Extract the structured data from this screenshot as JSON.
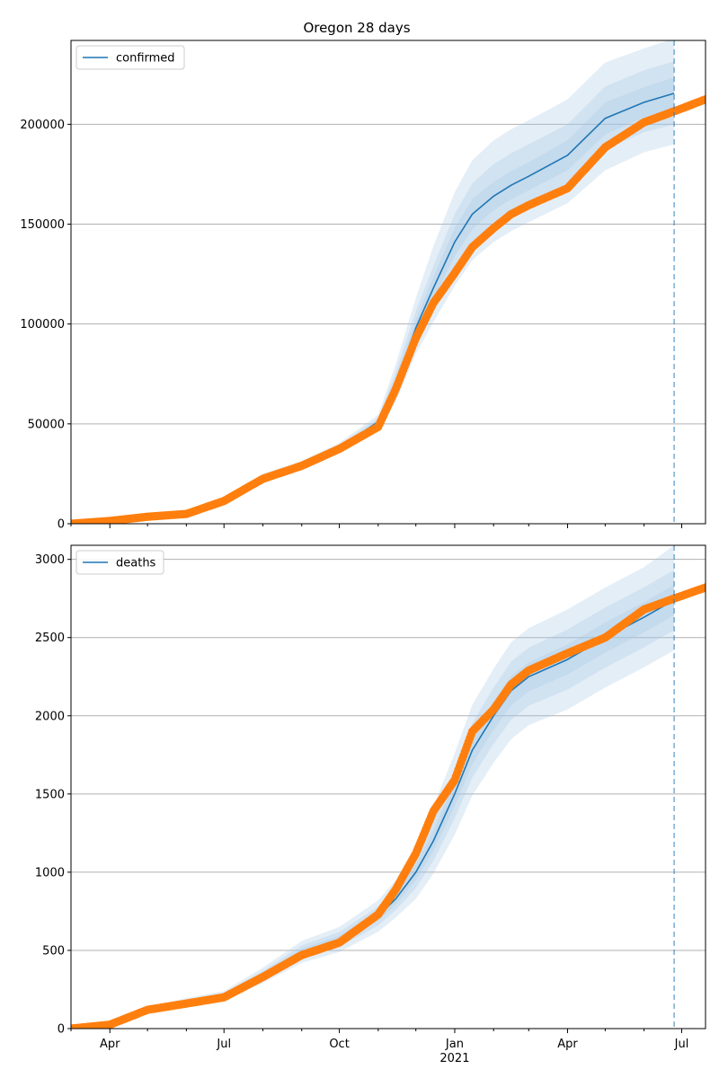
{
  "title": "Oregon 28 days",
  "colors": {
    "forecast": "#1f77b4",
    "observed": "#ff7f0e",
    "band": "#a6c8e6",
    "grid": "#b0b0b0"
  },
  "chart_data": [
    {
      "type": "line",
      "name": "confirmed-panel",
      "title": "Oregon 28 days",
      "xlabel": "",
      "ylabel": "",
      "xlim": [
        "2020-03-01",
        "2021-07-20"
      ],
      "ylim": [
        0,
        242000
      ],
      "grid": "horizontal",
      "legend_position": "top-left",
      "y_ticks": [
        0,
        50000,
        100000,
        150000,
        200000
      ],
      "forecast_cutoff": "2021-06-25",
      "series": [
        {
          "name": "confirmed",
          "role": "forecast-median",
          "x": [
            "2020-03-01",
            "2020-04-01",
            "2020-05-01",
            "2020-06-01",
            "2020-07-01",
            "2020-08-01",
            "2020-09-01",
            "2020-10-01",
            "2020-11-01",
            "2020-11-15",
            "2020-12-01",
            "2020-12-15",
            "2021-01-01",
            "2021-01-15",
            "2021-02-01",
            "2021-02-15",
            "2021-03-01",
            "2021-04-01",
            "2021-05-01",
            "2021-06-01",
            "2021-06-25"
          ],
          "y": [
            0,
            1500,
            3800,
            5500,
            12000,
            23000,
            29500,
            38000,
            51000,
            70000,
            98000,
            118000,
            141000,
            155000,
            164000,
            169500,
            174000,
            184500,
            203000,
            211000,
            215500
          ],
          "bands": [
            {
              "lower": [
                0,
                1300,
                3400,
                5000,
                11000,
                21000,
                27500,
                35500,
                47500,
                61000,
                85000,
                101000,
                119000,
                132000,
                141000,
                146500,
                151000,
                160500,
                177000,
                186000,
                190000
              ],
              "upper": [
                0,
                1700,
                4200,
                6000,
                13000,
                25000,
                31500,
                40500,
                54500,
                80000,
                113000,
                139000,
                166000,
                182000,
                192000,
                197500,
                202000,
                212500,
                231000,
                238000,
                243000
              ]
            },
            {
              "lower": [
                0,
                1400,
                3550,
                5200,
                11400,
                21800,
                28300,
                36500,
                49000,
                64500,
                90000,
                107500,
                127500,
                141000,
                150500,
                156000,
                160500,
                170500,
                187500,
                196000,
                200000
              ],
              "upper": [
                0,
                1600,
                4050,
                5800,
                12600,
                24200,
                30700,
                39500,
                53000,
                76000,
                106500,
                129000,
                155000,
                170500,
                180000,
                185500,
                190000,
                200000,
                219000,
                227000,
                231500
              ]
            },
            {
              "lower": [
                0,
                1450,
                3680,
                5350,
                11700,
                22400,
                28900,
                37200,
                50000,
                67000,
                94000,
                112500,
                134000,
                147500,
                157000,
                162500,
                167000,
                177000,
                195000,
                203500,
                207500
              ],
              "upper": [
                0,
                1550,
                3920,
                5650,
                12300,
                23600,
                30100,
                38800,
                52000,
                73000,
                102000,
                123500,
                148000,
                162500,
                171000,
                176500,
                181000,
                192000,
                211000,
                218500,
                223500
              ]
            }
          ]
        },
        {
          "name": "observed-confirmed",
          "role": "observed",
          "x": [
            "2020-03-01",
            "2020-04-01",
            "2020-05-01",
            "2020-06-01",
            "2020-07-01",
            "2020-08-01",
            "2020-09-01",
            "2020-10-01",
            "2020-11-01",
            "2020-11-15",
            "2020-12-01",
            "2020-12-15",
            "2021-01-01",
            "2021-01-15",
            "2021-02-01",
            "2021-02-15",
            "2021-03-01",
            "2021-04-01",
            "2021-05-01",
            "2021-06-01",
            "2021-06-25",
            "2021-07-20"
          ],
          "y": [
            0,
            1400,
            3500,
            4900,
            11400,
            22500,
            29000,
            37500,
            48500,
            67500,
            93000,
            110500,
            125500,
            138500,
            148000,
            155000,
            159500,
            168000,
            188500,
            201000,
            206500,
            212500
          ]
        }
      ]
    },
    {
      "type": "line",
      "name": "deaths-panel",
      "title": "",
      "xlabel": "",
      "ylabel": "",
      "xlim": [
        "2020-03-01",
        "2021-07-20"
      ],
      "ylim": [
        0,
        3090
      ],
      "grid": "horizontal",
      "legend_position": "top-left",
      "y_ticks": [
        0,
        500,
        1000,
        1500,
        2000,
        2500,
        3000
      ],
      "x_tick_labels": [
        "Apr",
        "Jul",
        "Oct",
        "Jan",
        "Apr",
        "Jul"
      ],
      "x_tick_dates": [
        "2020-04-01",
        "2020-07-01",
        "2020-10-01",
        "2021-01-01",
        "2021-04-01",
        "2021-07-01"
      ],
      "x_year_label": "2021",
      "forecast_cutoff": "2021-06-25",
      "series": [
        {
          "name": "deaths",
          "role": "forecast-median",
          "x": [
            "2020-03-01",
            "2020-04-01",
            "2020-05-01",
            "2020-06-01",
            "2020-07-01",
            "2020-08-01",
            "2020-09-01",
            "2020-10-01",
            "2020-11-01",
            "2020-11-15",
            "2020-12-01",
            "2020-12-15",
            "2021-01-01",
            "2021-01-15",
            "2021-02-01",
            "2021-02-15",
            "2021-03-01",
            "2021-04-01",
            "2021-05-01",
            "2021-06-01",
            "2021-06-25"
          ],
          "y": [
            0,
            20,
            120,
            170,
            210,
            340,
            490,
            570,
            720,
            830,
            1000,
            1200,
            1500,
            1780,
            2000,
            2160,
            2250,
            2360,
            2500,
            2630,
            2740
          ],
          "bands": [
            {
              "lower": [
                0,
                15,
                100,
                145,
                180,
                290,
                420,
                490,
                620,
                710,
                830,
                990,
                1240,
                1490,
                1700,
                1850,
                1940,
                2040,
                2180,
                2310,
                2420
              ],
              "upper": [
                0,
                25,
                140,
                195,
                240,
                390,
                560,
                650,
                820,
                950,
                1170,
                1420,
                1760,
                2070,
                2300,
                2470,
                2560,
                2680,
                2820,
                2950,
                3090
              ]
            },
            {
              "lower": [
                0,
                17,
                108,
                155,
                192,
                310,
                448,
                522,
                660,
                758,
                898,
                1072,
                1344,
                1606,
                1820,
                1974,
                2064,
                2168,
                2308,
                2438,
                2548
              ],
              "upper": [
                0,
                23,
                132,
                185,
                228,
                370,
                532,
                618,
                780,
                902,
                1102,
                1328,
                1656,
                1954,
                2180,
                2346,
                2436,
                2552,
                2692,
                2822,
                2932
              ]
            },
            {
              "lower": [
                0,
                18.5,
                114,
                162,
                201,
                325,
                469,
                546,
                690,
                794,
                949,
                1136,
                1422,
                1693,
                1910,
                2067,
                2157,
                2264,
                2404,
                2534,
                2644
              ],
              "upper": [
                0,
                21.5,
                126,
                178,
                219,
                355,
                511,
                594,
                750,
                866,
                1051,
                1264,
                1578,
                1867,
                2090,
                2253,
                2343,
                2456,
                2596,
                2726,
                2836
              ]
            }
          ]
        },
        {
          "name": "observed-deaths",
          "role": "observed",
          "x": [
            "2020-03-01",
            "2020-04-01",
            "2020-05-01",
            "2020-06-01",
            "2020-07-01",
            "2020-08-01",
            "2020-09-01",
            "2020-10-01",
            "2020-11-01",
            "2020-11-15",
            "2020-12-01",
            "2020-12-15",
            "2021-01-01",
            "2021-01-15",
            "2021-02-01",
            "2021-02-15",
            "2021-03-01",
            "2021-04-01",
            "2021-05-01",
            "2021-06-01",
            "2021-06-25",
            "2021-07-20"
          ],
          "y": [
            0,
            25,
            120,
            160,
            200,
            330,
            470,
            550,
            730,
            890,
            1120,
            1390,
            1590,
            1900,
            2040,
            2200,
            2290,
            2400,
            2500,
            2680,
            2750,
            2820
          ]
        }
      ]
    }
  ]
}
